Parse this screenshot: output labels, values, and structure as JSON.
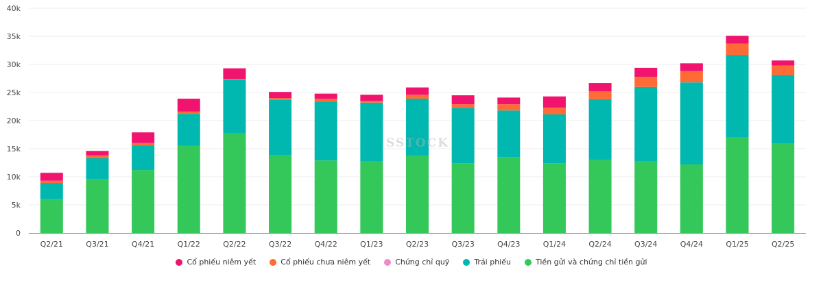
{
  "chart_data": {
    "type": "bar",
    "stacked": true,
    "title": "",
    "xlabel": "",
    "ylabel": "",
    "ylim": [
      0,
      40000
    ],
    "yticks": [
      0,
      5000,
      10000,
      15000,
      20000,
      25000,
      30000,
      35000,
      40000
    ],
    "ytick_labels": [
      "0",
      "5k",
      "10k",
      "15k",
      "20k",
      "25k",
      "30k",
      "35k",
      "40k"
    ],
    "grid": true,
    "legend_position": "bottom",
    "categories": [
      "Q2/21",
      "Q3/21",
      "Q4/21",
      "Q1/22",
      "Q2/22",
      "Q3/22",
      "Q4/22",
      "Q1/23",
      "Q2/23",
      "Q3/23",
      "Q4/23",
      "Q1/24",
      "Q2/24",
      "Q3/24",
      "Q4/24",
      "Q1/25",
      "Q2/25"
    ],
    "series": [
      {
        "name": "Tiền gửi và chứng chỉ tiền gửi",
        "color": "#34c759",
        "values": [
          6000,
          9600,
          11200,
          15500,
          17700,
          13900,
          12900,
          12700,
          13700,
          12400,
          13500,
          12400,
          13000,
          12800,
          12200,
          17000,
          15900
        ]
      },
      {
        "name": "Trái phiếu",
        "color": "#00b8b0",
        "values": [
          2900,
          3700,
          4400,
          5700,
          9500,
          9800,
          10500,
          10500,
          10200,
          9800,
          8300,
          8700,
          10800,
          13200,
          14600,
          14700,
          12200
        ]
      },
      {
        "name": "Chứng chỉ quỹ",
        "color": "#f08ac8",
        "values": [
          0,
          0,
          0,
          0,
          0,
          0,
          0,
          0,
          0,
          0,
          0,
          0,
          0,
          0,
          0,
          0,
          0
        ]
      },
      {
        "name": "Cổ phiếu chưa niêm yết",
        "color": "#ff6b35",
        "values": [
          400,
          500,
          400,
          400,
          200,
          300,
          500,
          300,
          700,
          700,
          1100,
          1200,
          1400,
          1800,
          2000,
          2000,
          1700
        ]
      },
      {
        "name": "Cổ phiếu niêm yết",
        "color": "#f0146e",
        "values": [
          1400,
          800,
          1900,
          2300,
          1900,
          1100,
          900,
          1100,
          1300,
          1600,
          1200,
          2000,
          1500,
          1600,
          1400,
          1400,
          900
        ]
      }
    ],
    "legend_order": [
      "Cổ phiếu niêm yết",
      "Cổ phiếu chưa niêm yết",
      "Chứng chỉ quỹ",
      "Trái phiếu",
      "Tiền gửi và chứng chỉ tiền gửi"
    ]
  },
  "watermark": "SSTOCK"
}
